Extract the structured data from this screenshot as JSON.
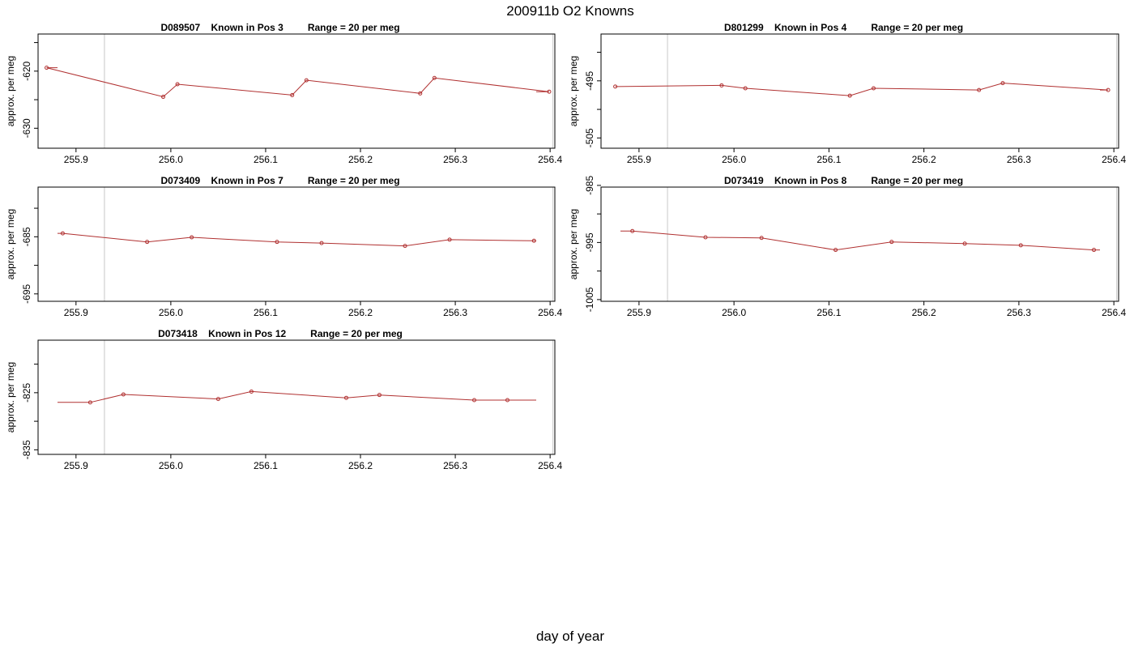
{
  "page": {
    "title": "200911b   O2 Knowns",
    "xlabel": "day of year"
  },
  "colors": {
    "line": "#b03030",
    "marker": "#b03030",
    "vline": "#c8c8c8",
    "frame": "#000000"
  },
  "chart_data": [
    {
      "type": "line",
      "title": "D089507    Known in Pos 3         Range = 20 per meg",
      "ylabel": "approx. per meg",
      "xlim": [
        255.86,
        256.405
      ],
      "ylim": [
        -633.5,
        -613.5
      ],
      "xticks": [
        255.9,
        256.0,
        256.1,
        256.2,
        256.3,
        256.4
      ],
      "xtick_labels": [
        "255.9",
        "256.0",
        "256.1",
        "256.2",
        "256.3",
        "256.4"
      ],
      "yticks": [
        -615,
        -620,
        -625,
        -630
      ],
      "ytick_labels": [
        "",
        "-620",
        "",
        "-630"
      ],
      "vlines": [
        255.93,
        256.403
      ],
      "series": [
        {
          "x": [
            255.869,
            255.992,
            256.007,
            256.128,
            256.143,
            256.263,
            256.278,
            256.399
          ],
          "y": [
            -619.4,
            -624.5,
            -622.3,
            -624.2,
            -621.6,
            -623.9,
            -621.2,
            -623.6
          ]
        }
      ]
    },
    {
      "type": "line",
      "title": "D801299    Known in Pos 4         Range = 20 per meg",
      "ylabel": "approx. per meg",
      "xlim": [
        255.86,
        256.405
      ],
      "ylim": [
        -506.8,
        -486.8
      ],
      "xticks": [
        255.9,
        256.0,
        256.1,
        256.2,
        256.3,
        256.4
      ],
      "xtick_labels": [
        "255.9",
        "256.0",
        "256.1",
        "256.2",
        "256.3",
        "256.4"
      ],
      "yticks": [
        -490,
        -495,
        -500,
        -505
      ],
      "ytick_labels": [
        "",
        "-495",
        "",
        "-505"
      ],
      "vlines": [
        255.93,
        256.403
      ],
      "series": [
        {
          "x": [
            255.875,
            255.987,
            256.012,
            256.122,
            256.147,
            256.258,
            256.283,
            256.394
          ],
          "y": [
            -496.0,
            -495.8,
            -496.3,
            -497.6,
            -496.3,
            -496.6,
            -495.4,
            -496.6
          ]
        }
      ]
    },
    {
      "type": "line",
      "title": "D073409    Known in Pos 7         Range = 20 per meg",
      "ylabel": "approx. per meg",
      "xlim": [
        255.86,
        256.405
      ],
      "ylim": [
        -696.3,
        -676.3
      ],
      "xticks": [
        255.9,
        256.0,
        256.1,
        256.2,
        256.3,
        256.4
      ],
      "xtick_labels": [
        "255.9",
        "256.0",
        "256.1",
        "256.2",
        "256.3",
        "256.4"
      ],
      "yticks": [
        -680,
        -685,
        -690,
        -695
      ],
      "ytick_labels": [
        "",
        "-685",
        "",
        "-695"
      ],
      "vlines": [
        255.93,
        256.403
      ],
      "series": [
        {
          "x": [
            255.886,
            255.975,
            256.022,
            256.112,
            256.159,
            256.247,
            256.294,
            256.383
          ],
          "y": [
            -684.4,
            -685.9,
            -685.1,
            -685.9,
            -686.1,
            -686.6,
            -685.5,
            -685.7
          ]
        }
      ]
    },
    {
      "type": "line",
      "title": "D073419    Known in Pos 8         Range = 20 per meg",
      "ylabel": "approx. per meg",
      "xlim": [
        255.86,
        256.405
      ],
      "ylim": [
        -1005.3,
        -985.3
      ],
      "xticks": [
        255.9,
        256.0,
        256.1,
        256.2,
        256.3,
        256.4
      ],
      "xtick_labels": [
        "255.9",
        "256.0",
        "256.1",
        "256.2",
        "256.3",
        "256.4"
      ],
      "yticks": [
        -985,
        -990,
        -995,
        -1000,
        -1005
      ],
      "ytick_labels": [
        "-985",
        "",
        "-995",
        "",
        "-1005"
      ],
      "vlines": [
        255.93,
        256.403
      ],
      "series": [
        {
          "x": [
            255.893,
            255.97,
            256.029,
            256.107,
            256.166,
            256.243,
            256.302,
            256.379
          ],
          "y": [
            -993.0,
            -994.1,
            -994.2,
            -996.3,
            -994.9,
            -995.2,
            -995.5,
            -996.3
          ]
        }
      ]
    },
    {
      "type": "line",
      "title": "D073418    Known in Pos 12         Range = 20 per meg",
      "ylabel": "approx. per meg",
      "xlim": [
        255.86,
        256.405
      ],
      "ylim": [
        -835.8,
        -815.8
      ],
      "xticks": [
        255.9,
        256.0,
        256.1,
        256.2,
        256.3,
        256.4
      ],
      "xtick_labels": [
        "255.9",
        "256.0",
        "256.1",
        "256.2",
        "256.3",
        "256.4"
      ],
      "yticks": [
        -820,
        -825,
        -830,
        -835
      ],
      "ytick_labels": [
        "",
        "-825",
        "",
        "-835"
      ],
      "vlines": [
        255.93,
        256.403
      ],
      "series": [
        {
          "x": [
            255.915,
            255.95,
            256.05,
            256.085,
            256.185,
            256.22,
            256.32,
            256.355
          ],
          "y": [
            -826.7,
            -825.3,
            -826.1,
            -824.8,
            -825.9,
            -825.4,
            -826.3,
            -826.3
          ]
        }
      ]
    }
  ]
}
